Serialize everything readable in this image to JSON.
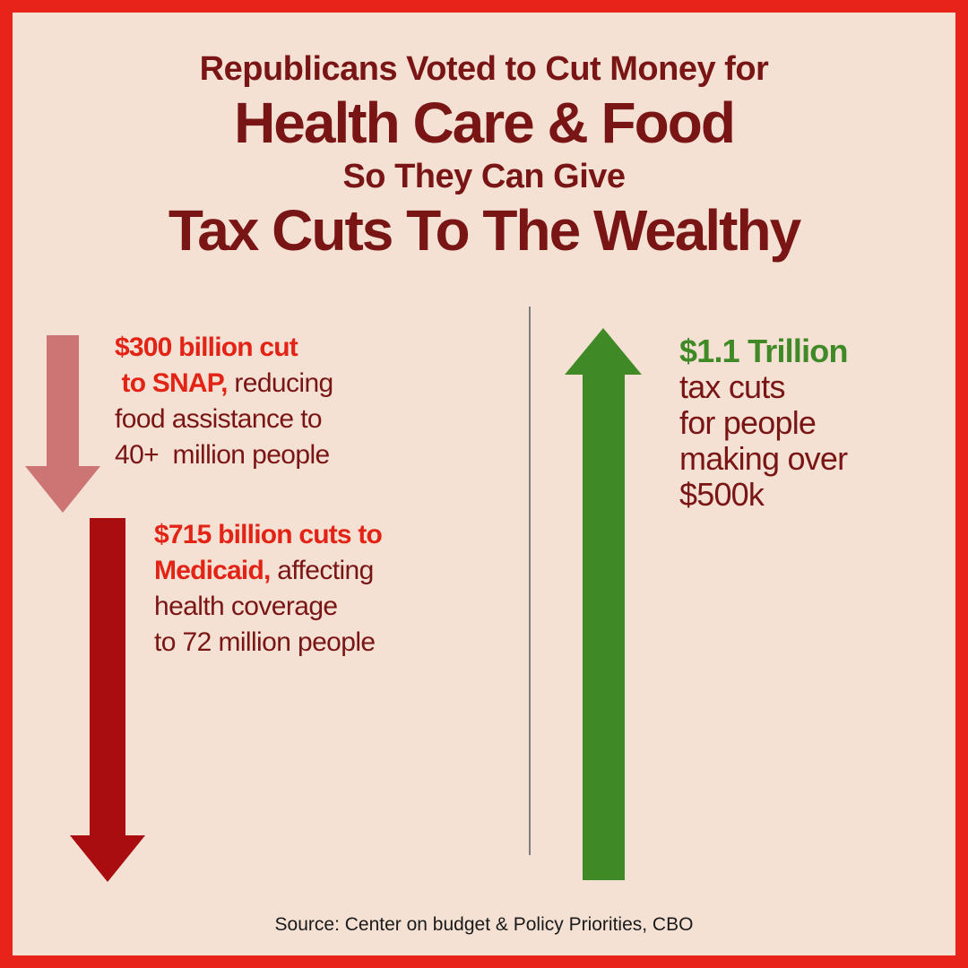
{
  "headline": {
    "line1": "Republicans Voted to Cut Money for",
    "line2": "Health Care & Food",
    "line3": "So They Can Give",
    "line4": "Tax Cuts To The Wealthy"
  },
  "snap": {
    "highlight_line1": "$300 billion cut",
    "highlight_line2": " to SNAP,",
    "line2_rest": " reducing",
    "line3": "food assistance to",
    "line4": "40+  million people"
  },
  "medicaid": {
    "highlight_line1": "$715 billion cuts to",
    "highlight_line2": "Medicaid,",
    "line2_rest": " affecting",
    "line3": "health coverage",
    "line4": "to 72 million people"
  },
  "tax_cuts": {
    "highlight": "$1.1 Trillion",
    "line2": "tax cuts",
    "line3": "for people",
    "line4": "making over",
    "line5": "$500k"
  },
  "source": "Source: Center on budget & Policy Priorities, CBO",
  "colors": {
    "border": "#e8231a",
    "background": "#f4e1d4",
    "headline_text": "#7a1515",
    "highlight_red": "#e32315",
    "highlight_green": "#3f8a27",
    "snap_arrow": "#cd7474",
    "medicaid_arrow": "#a90d10",
    "tax_arrow": "#3f8a27"
  },
  "icons": {
    "snap_arrow": "arrow-down-icon",
    "medicaid_arrow": "arrow-down-icon",
    "tax_arrow": "arrow-up-icon"
  }
}
